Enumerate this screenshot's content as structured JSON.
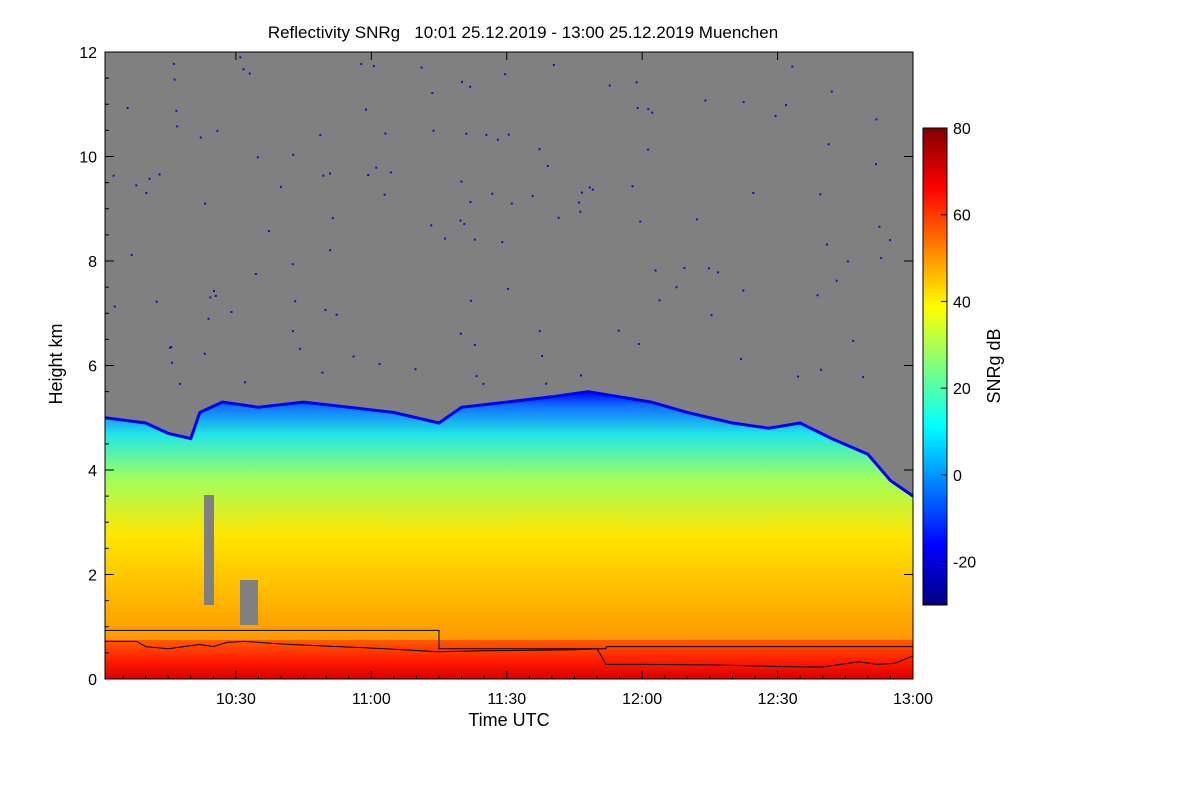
{
  "chart_data": {
    "type": "heatmap",
    "title": "Reflectivity SNRg   10:01 25.12.2019 - 13:00 25.12.2019 Muenchen",
    "xlabel": "Time UTC",
    "ylabel": "Height km",
    "colorbar_label": "SNRg dB",
    "x_ticks": [
      "10:30",
      "11:00",
      "11:30",
      "12:00",
      "12:30",
      "13:00"
    ],
    "x_tick_minutes": [
      30,
      60,
      90,
      120,
      150,
      180
    ],
    "xlim_minutes": [
      1,
      180
    ],
    "y_ticks": [
      "0",
      "2",
      "4",
      "6",
      "8",
      "10",
      "12"
    ],
    "y_tick_values": [
      0,
      2,
      4,
      6,
      8,
      10,
      12
    ],
    "ylim": [
      0,
      12
    ],
    "colorbar_ticks": [
      "-20",
      "0",
      "20",
      "40",
      "60",
      "80"
    ],
    "colorbar_tick_values": [
      -20,
      0,
      20,
      40,
      60,
      80
    ],
    "colorbar_range": [
      -30,
      80
    ],
    "no_signal_color": "#808080",
    "colormap": [
      "#00007f",
      "#0000ff",
      "#007fff",
      "#00ffff",
      "#7fff7f",
      "#ffff00",
      "#ff7f00",
      "#ff0000",
      "#7f0000"
    ],
    "cloud_top_km": [
      [
        1,
        5.0
      ],
      [
        10,
        4.9
      ],
      [
        15,
        4.7
      ],
      [
        20,
        4.6
      ],
      [
        22,
        5.1
      ],
      [
        27,
        5.3
      ],
      [
        35,
        5.2
      ],
      [
        45,
        5.3
      ],
      [
        55,
        5.2
      ],
      [
        65,
        5.1
      ],
      [
        75,
        4.9
      ],
      [
        80,
        5.2
      ],
      [
        90,
        5.3
      ],
      [
        100,
        5.4
      ],
      [
        108,
        5.5
      ],
      [
        115,
        5.4
      ],
      [
        122,
        5.3
      ],
      [
        130,
        5.1
      ],
      [
        140,
        4.9
      ],
      [
        148,
        4.8
      ],
      [
        155,
        4.9
      ],
      [
        162,
        4.6
      ],
      [
        170,
        4.3
      ],
      [
        175,
        3.8
      ],
      [
        180,
        3.5
      ]
    ],
    "cloud_base_step_km": [
      [
        1,
        0.93
      ],
      [
        75,
        0.93
      ],
      [
        75,
        0.58
      ],
      [
        112,
        0.58
      ],
      [
        112,
        0.62
      ],
      [
        180,
        0.62
      ]
    ],
    "mixing_layer_km": [
      [
        1,
        0.72
      ],
      [
        8,
        0.72
      ],
      [
        10,
        0.62
      ],
      [
        15,
        0.58
      ],
      [
        20,
        0.64
      ],
      [
        22,
        0.66
      ],
      [
        25,
        0.62
      ],
      [
        28,
        0.7
      ],
      [
        32,
        0.72
      ],
      [
        40,
        0.67
      ],
      [
        50,
        0.63
      ],
      [
        58,
        0.6
      ],
      [
        65,
        0.57
      ],
      [
        75,
        0.52
      ],
      [
        85,
        0.54
      ],
      [
        95,
        0.55
      ],
      [
        105,
        0.56
      ],
      [
        110,
        0.58
      ],
      [
        112,
        0.28
      ],
      [
        120,
        0.28
      ],
      [
        135,
        0.27
      ],
      [
        150,
        0.24
      ],
      [
        160,
        0.23
      ],
      [
        168,
        0.33
      ],
      [
        172,
        0.28
      ],
      [
        176,
        0.3
      ],
      [
        180,
        0.44
      ]
    ]
  }
}
